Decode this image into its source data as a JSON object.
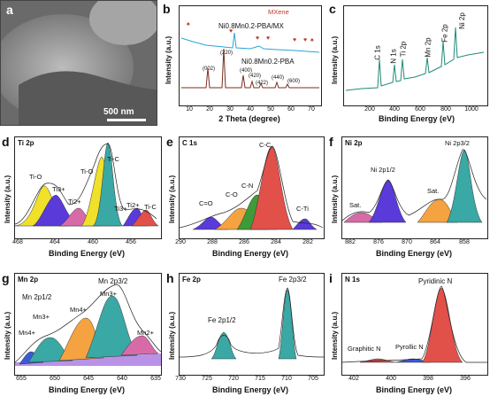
{
  "panels": {
    "a": {
      "letter": "a",
      "scale": "500 nm"
    },
    "b": {
      "letter": "b",
      "legend": "MXene",
      "series_top": "Ni0.8Mn0.2-PBA/MX",
      "series_bottom": "Ni0.8Mn0.2-PBA",
      "ylabel": "Intensity (a.u.)",
      "xlabel": "2 Theta (degree)",
      "xticks": [
        "10",
        "20",
        "30",
        "40",
        "50",
        "60",
        "70"
      ],
      "peaks": [
        "(002)",
        "(220)",
        "(400)",
        "(420)",
        "(422)",
        "(440)",
        "(600)"
      ]
    },
    "c": {
      "letter": "c",
      "ylabel": "Intensity (a.u.)",
      "xlabel": "Binding Energy (eV)",
      "xticks": [
        "200",
        "400",
        "600",
        "800",
        "1000"
      ],
      "labels": [
        "C 1s",
        "N 1s",
        "Ti 2p",
        "Mn 2p",
        "Fe 2p",
        "Ni 2p"
      ]
    },
    "d": {
      "letter": "d",
      "title": "Ti 2p",
      "xticks": [
        "468",
        "464",
        "460",
        "456"
      ],
      "labels": [
        "Ti-O",
        "Ti3+",
        "Ti2+",
        "Ti-O",
        "Ti-C",
        "Ti3+",
        "Ti2+",
        "Ti-C"
      ]
    },
    "e": {
      "letter": "e",
      "title": "C 1s",
      "xticks": [
        "290",
        "288",
        "286",
        "284",
        "282"
      ],
      "labels": [
        "C=O",
        "C-O",
        "C-N",
        "C-C",
        "C-Ti"
      ]
    },
    "f": {
      "letter": "f",
      "title": "Ni 2p",
      "xticks": [
        "882",
        "876",
        "870",
        "864",
        "858"
      ],
      "labels": [
        "Sat.",
        "Ni 2p1/2",
        "Sat.",
        "Ni 2p3/2"
      ]
    },
    "g": {
      "letter": "g",
      "title": "Mn 2p",
      "xticks": [
        "655",
        "650",
        "645",
        "640",
        "635"
      ],
      "labels": [
        "Mn 2p1/2",
        "Mn3+",
        "Mn4+",
        "Mn4+",
        "Mn 2p3/2",
        "Mn3+",
        "Mn2+"
      ]
    },
    "h": {
      "letter": "h",
      "title": "Fe 2p",
      "xticks": [
        "730",
        "725",
        "720",
        "715",
        "710",
        "705"
      ],
      "labels": [
        "Fe 2p1/2",
        "Fe 2p3/2"
      ]
    },
    "i": {
      "letter": "i",
      "title": "N 1s",
      "xticks": [
        "402",
        "400",
        "398",
        "396"
      ],
      "labels": [
        "Pyridinic N",
        "Graphitic N",
        "Pyrollic N"
      ]
    }
  },
  "common": {
    "ylabel": "Intensity (a.u.)",
    "xlabel": "Binding Energy (eV)"
  },
  "chart_data": [
    {
      "type": "line",
      "panel": "b",
      "xlabel": "2 Theta (degree)",
      "ylabel": "Intensity (a.u.)",
      "xlim": [
        5,
        75
      ],
      "series": [
        {
          "name": "Ni0.8Mn0.2-PBA/MX",
          "color": "#2aa3d8"
        },
        {
          "name": "Ni0.8Mn0.2-PBA",
          "color": "#7a2e1e"
        }
      ],
      "peaks_2theta": [
        17.5,
        24.8,
        35.4,
        39.8,
        43.8,
        50.7,
        57.2
      ]
    },
    {
      "type": "line",
      "panel": "c",
      "xlabel": "Binding Energy (eV)",
      "ylabel": "Intensity (a.u.)",
      "xlim": [
        0,
        1100
      ],
      "peaks_eV": {
        "C 1s": 285,
        "N 1s": 398,
        "Ti 2p": 458,
        "Mn 2p": 642,
        "Fe 2p": 710,
        "Ni 2p": 856
      }
    },
    {
      "type": "line",
      "panel": "d",
      "xlim": [
        468,
        453
      ],
      "components_eV": [
        464.5,
        462.8,
        461.5,
        458.8,
        455.5
      ]
    },
    {
      "type": "line",
      "panel": "e",
      "xlim": [
        290,
        281
      ],
      "components_eV": [
        288.5,
        286.4,
        285.3,
        284.6,
        281.8
      ]
    },
    {
      "type": "line",
      "panel": "f",
      "xlim": [
        884,
        853
      ],
      "components_eV": [
        880,
        874,
        862,
        856
      ]
    },
    {
      "type": "line",
      "panel": "g",
      "xlim": [
        657,
        635
      ],
      "components_eV": [
        654,
        652,
        646,
        642,
        639
      ]
    },
    {
      "type": "line",
      "panel": "h",
      "xlim": [
        730,
        703
      ],
      "components_eV": [
        722.5,
        709.5
      ]
    },
    {
      "type": "line",
      "panel": "i",
      "xlim": [
        404,
        396
      ],
      "components_eV": [
        401,
        399.8,
        398.2
      ]
    }
  ],
  "colors": {
    "teal": "#3aa8a4",
    "orange": "#f4a340",
    "yellow": "#f0e02a",
    "purple": "#5a3ad8",
    "pink": "#d96aa8",
    "red": "#e2504a",
    "green": "#3f9a3a",
    "blue": "#3a5ad8"
  }
}
